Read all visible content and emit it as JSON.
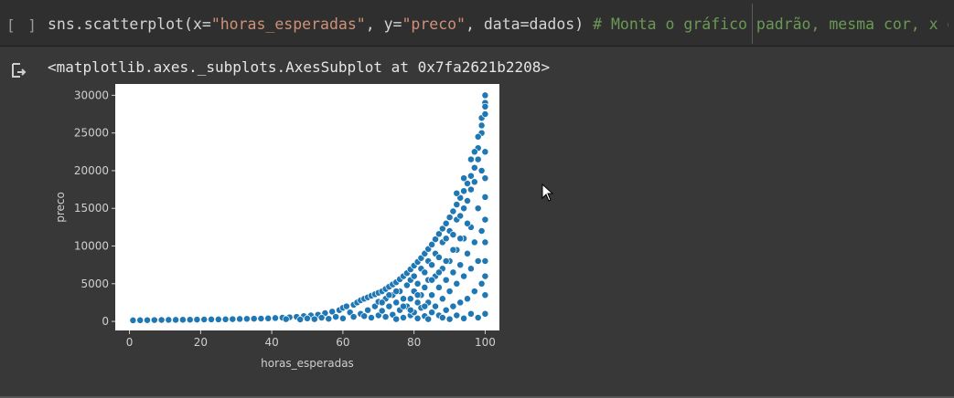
{
  "cell": {
    "run_indicator": "[ ]",
    "code": {
      "t1": "sns.scatterplot(x=",
      "t2": "\"horas_esperadas\"",
      "t3": ", y=",
      "t4": "\"preco\"",
      "t5": ", data=dados) ",
      "comment": "# Monta o gráfico padrão, mesma cor, x e y"
    }
  },
  "output": {
    "icon": "output-redirect-icon",
    "text": "<matplotlib.axes._subplots.AxesSubplot at 0x7fa2621b2208>"
  },
  "chart_data": {
    "type": "scatter",
    "title": "",
    "xlabel": "horas_esperadas",
    "ylabel": "preco",
    "xlim": [
      -4,
      104
    ],
    "ylim": [
      -1200,
      31500
    ],
    "x_ticks": [
      0,
      20,
      40,
      60,
      80,
      100
    ],
    "y_ticks": [
      0,
      5000,
      10000,
      15000,
      20000,
      25000,
      30000
    ],
    "grid": false,
    "point_color": "#1f77b4",
    "point_edge": "#ffffff",
    "points": [
      [
        1,
        150
      ],
      [
        3,
        160
      ],
      [
        5,
        170
      ],
      [
        7,
        180
      ],
      [
        9,
        190
      ],
      [
        11,
        200
      ],
      [
        13,
        210
      ],
      [
        15,
        220
      ],
      [
        17,
        230
      ],
      [
        19,
        240
      ],
      [
        21,
        250
      ],
      [
        23,
        260
      ],
      [
        25,
        270
      ],
      [
        27,
        280
      ],
      [
        29,
        300
      ],
      [
        31,
        320
      ],
      [
        33,
        340
      ],
      [
        35,
        360
      ],
      [
        37,
        380
      ],
      [
        39,
        400
      ],
      [
        41,
        450
      ],
      [
        43,
        500
      ],
      [
        45,
        550
      ],
      [
        47,
        600
      ],
      [
        49,
        700
      ],
      [
        51,
        800
      ],
      [
        53,
        900
      ],
      [
        55,
        1100
      ],
      [
        57,
        1300
      ],
      [
        59,
        1500
      ],
      [
        44,
        300
      ],
      [
        48,
        250
      ],
      [
        50,
        400
      ],
      [
        52,
        300
      ],
      [
        54,
        500
      ],
      [
        56,
        350
      ],
      [
        58,
        600
      ],
      [
        60,
        400
      ],
      [
        60,
        1800
      ],
      [
        61,
        2000
      ],
      [
        62,
        1200
      ],
      [
        63,
        2200
      ],
      [
        63,
        600
      ],
      [
        64,
        2500
      ],
      [
        65,
        1000
      ],
      [
        65,
        2800
      ],
      [
        66,
        700
      ],
      [
        66,
        3000
      ],
      [
        67,
        1500
      ],
      [
        67,
        3200
      ],
      [
        68,
        500
      ],
      [
        68,
        3400
      ],
      [
        69,
        2000
      ],
      [
        69,
        3600
      ],
      [
        70,
        800
      ],
      [
        70,
        3800
      ],
      [
        70,
        2600
      ],
      [
        71,
        4000
      ],
      [
        71,
        1400
      ],
      [
        72,
        4300
      ],
      [
        72,
        600
      ],
      [
        72,
        3000
      ],
      [
        73,
        4600
      ],
      [
        73,
        2000
      ],
      [
        74,
        4900
      ],
      [
        74,
        900
      ],
      [
        74,
        3500
      ],
      [
        75,
        5200
      ],
      [
        75,
        2500
      ],
      [
        75,
        300
      ],
      [
        76,
        5600
      ],
      [
        76,
        4000
      ],
      [
        76,
        1500
      ],
      [
        77,
        6000
      ],
      [
        77,
        3000
      ],
      [
        77,
        500
      ],
      [
        78,
        6400
      ],
      [
        78,
        4800
      ],
      [
        78,
        2000
      ],
      [
        79,
        6900
      ],
      [
        79,
        5500
      ],
      [
        79,
        3000
      ],
      [
        79,
        800
      ],
      [
        80,
        7400
      ],
      [
        80,
        6000
      ],
      [
        80,
        4000
      ],
      [
        80,
        1200
      ],
      [
        81,
        7900
      ],
      [
        81,
        5000
      ],
      [
        81,
        2500
      ],
      [
        81,
        400
      ],
      [
        82,
        8400
      ],
      [
        82,
        7000
      ],
      [
        82,
        3500
      ],
      [
        82,
        1800
      ],
      [
        83,
        9000
      ],
      [
        83,
        6500
      ],
      [
        83,
        4500
      ],
      [
        83,
        700
      ],
      [
        84,
        9600
      ],
      [
        84,
        8000
      ],
      [
        84,
        5500
      ],
      [
        84,
        2500
      ],
      [
        84,
        300
      ],
      [
        85,
        10200
      ],
      [
        85,
        7500
      ],
      [
        85,
        3500
      ],
      [
        85,
        1200
      ],
      [
        86,
        10900
      ],
      [
        86,
        9000
      ],
      [
        86,
        6000
      ],
      [
        86,
        2000
      ],
      [
        87,
        11600
      ],
      [
        87,
        8500
      ],
      [
        87,
        4500
      ],
      [
        87,
        800
      ],
      [
        88,
        12300
      ],
      [
        88,
        10500
      ],
      [
        88,
        7000
      ],
      [
        88,
        3000
      ],
      [
        88,
        500
      ],
      [
        89,
        13000
      ],
      [
        89,
        11000
      ],
      [
        89,
        5500
      ],
      [
        89,
        1500
      ],
      [
        90,
        13800
      ],
      [
        90,
        12000
      ],
      [
        90,
        8000
      ],
      [
        90,
        4000
      ],
      [
        90,
        300
      ],
      [
        91,
        14600
      ],
      [
        91,
        11500
      ],
      [
        91,
        6500
      ],
      [
        91,
        2000
      ],
      [
        92,
        15500
      ],
      [
        92,
        13500
      ],
      [
        92,
        9500
      ],
      [
        92,
        5000
      ],
      [
        92,
        800
      ],
      [
        93,
        16400
      ],
      [
        93,
        14000
      ],
      [
        93,
        7500
      ],
      [
        93,
        2500
      ],
      [
        94,
        17300
      ],
      [
        94,
        15000
      ],
      [
        94,
        11000
      ],
      [
        94,
        6000
      ],
      [
        94,
        400
      ],
      [
        95,
        18300
      ],
      [
        95,
        16000
      ],
      [
        95,
        9000
      ],
      [
        95,
        3000
      ],
      [
        96,
        19300
      ],
      [
        96,
        17500
      ],
      [
        96,
        12500
      ],
      [
        96,
        7000
      ],
      [
        96,
        1000
      ],
      [
        97,
        20400
      ],
      [
        97,
        18500
      ],
      [
        97,
        10500
      ],
      [
        97,
        4000
      ],
      [
        98,
        21500
      ],
      [
        98,
        23000
      ],
      [
        98,
        15000
      ],
      [
        98,
        8000
      ],
      [
        98,
        500
      ],
      [
        99,
        25000
      ],
      [
        99,
        27000
      ],
      [
        99,
        20000
      ],
      [
        99,
        12000
      ],
      [
        99,
        5000
      ],
      [
        100,
        30000
      ],
      [
        100,
        29000
      ],
      [
        100,
        22500
      ],
      [
        100,
        16500
      ],
      [
        100,
        10500
      ],
      [
        100,
        6000
      ],
      [
        100,
        1000
      ],
      [
        92,
        17000
      ],
      [
        94,
        19000
      ],
      [
        96,
        21500
      ],
      [
        97,
        22500
      ],
      [
        98,
        24500
      ],
      [
        99,
        26000
      ],
      [
        100,
        27500
      ],
      [
        100,
        28500
      ],
      [
        100,
        19000
      ],
      [
        100,
        13500
      ],
      [
        100,
        8000
      ],
      [
        100,
        3500
      ],
      [
        95,
        13000
      ],
      [
        93,
        11000
      ],
      [
        91,
        9500
      ],
      [
        89,
        8000
      ],
      [
        87,
        6500
      ],
      [
        85,
        5500
      ],
      [
        83,
        2000
      ],
      [
        81,
        3500
      ],
      [
        79,
        1500
      ],
      [
        77,
        2000
      ],
      [
        75,
        4000
      ],
      [
        73,
        3500
      ],
      [
        71,
        2500
      ]
    ]
  }
}
